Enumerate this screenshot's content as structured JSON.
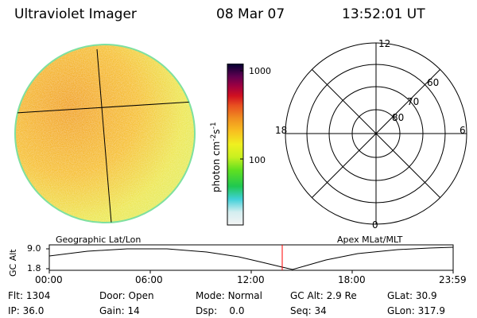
{
  "header": {
    "title": "Ultraviolet Imager",
    "date": "08 Mar 07",
    "time": "13:52:01 UT"
  },
  "colorbar": {
    "label": "photon cm",
    "label_exp": "-2",
    "label_mid": "s",
    "label_exp2": "-1",
    "tick_high": "1000",
    "tick_low": "100"
  },
  "polar": {
    "mlt_top": "12",
    "mlt_left": "18",
    "mlt_right": "6",
    "mlt_bottom": "0",
    "lat_60": "60",
    "lat_70": "70",
    "lat_80": "80"
  },
  "panels": {
    "left_caption": "Geographic Lat/Lon",
    "right_caption": "Apex MLat/MLT"
  },
  "altitude_plot": {
    "axis_label": "GC Alt",
    "y_max": "9.0",
    "y_min": "1.8",
    "x_ticks": [
      "00:00",
      "06:00",
      "12:00",
      "18:00",
      "23:59"
    ],
    "current_time_line_color": "#ff0000"
  },
  "info": {
    "flt_label": "Flt:",
    "flt_value": "1304",
    "ip_label": "IP:",
    "ip_value": "36.0",
    "door_label": "Door:",
    "door_value": "Open",
    "gain_label": "Gain:",
    "gain_value": "14",
    "mode_label": "Mode:",
    "mode_value": "Normal",
    "dsp_label": "Dsp:",
    "dsp_value": "0.0",
    "gcalt_label": "GC Alt:",
    "gcalt_value": "2.9 Re",
    "seq_label": "Seq:",
    "seq_value": "34",
    "glat_label": "GLat:",
    "glat_value": "30.9",
    "glon_label": "GLon:",
    "glon_value": "317.9"
  }
}
